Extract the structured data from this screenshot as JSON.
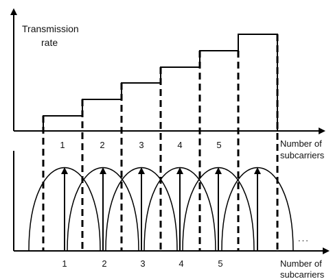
{
  "upper": {
    "y_label_line1": "Transmission",
    "y_label_line2": "rate",
    "x_label_line1": "Number of",
    "x_label_line2": "subcarriers",
    "band_labels": [
      "1",
      "2",
      "3",
      "4",
      "5"
    ]
  },
  "lower": {
    "x_label_line1": "Number of",
    "x_label_line2": "subcarriers",
    "band_labels": [
      "1",
      "2",
      "3",
      "4",
      "5"
    ],
    "ellipsis": "..."
  },
  "colors": {
    "ink": "#000000"
  },
  "subcarrier_count": 6
}
